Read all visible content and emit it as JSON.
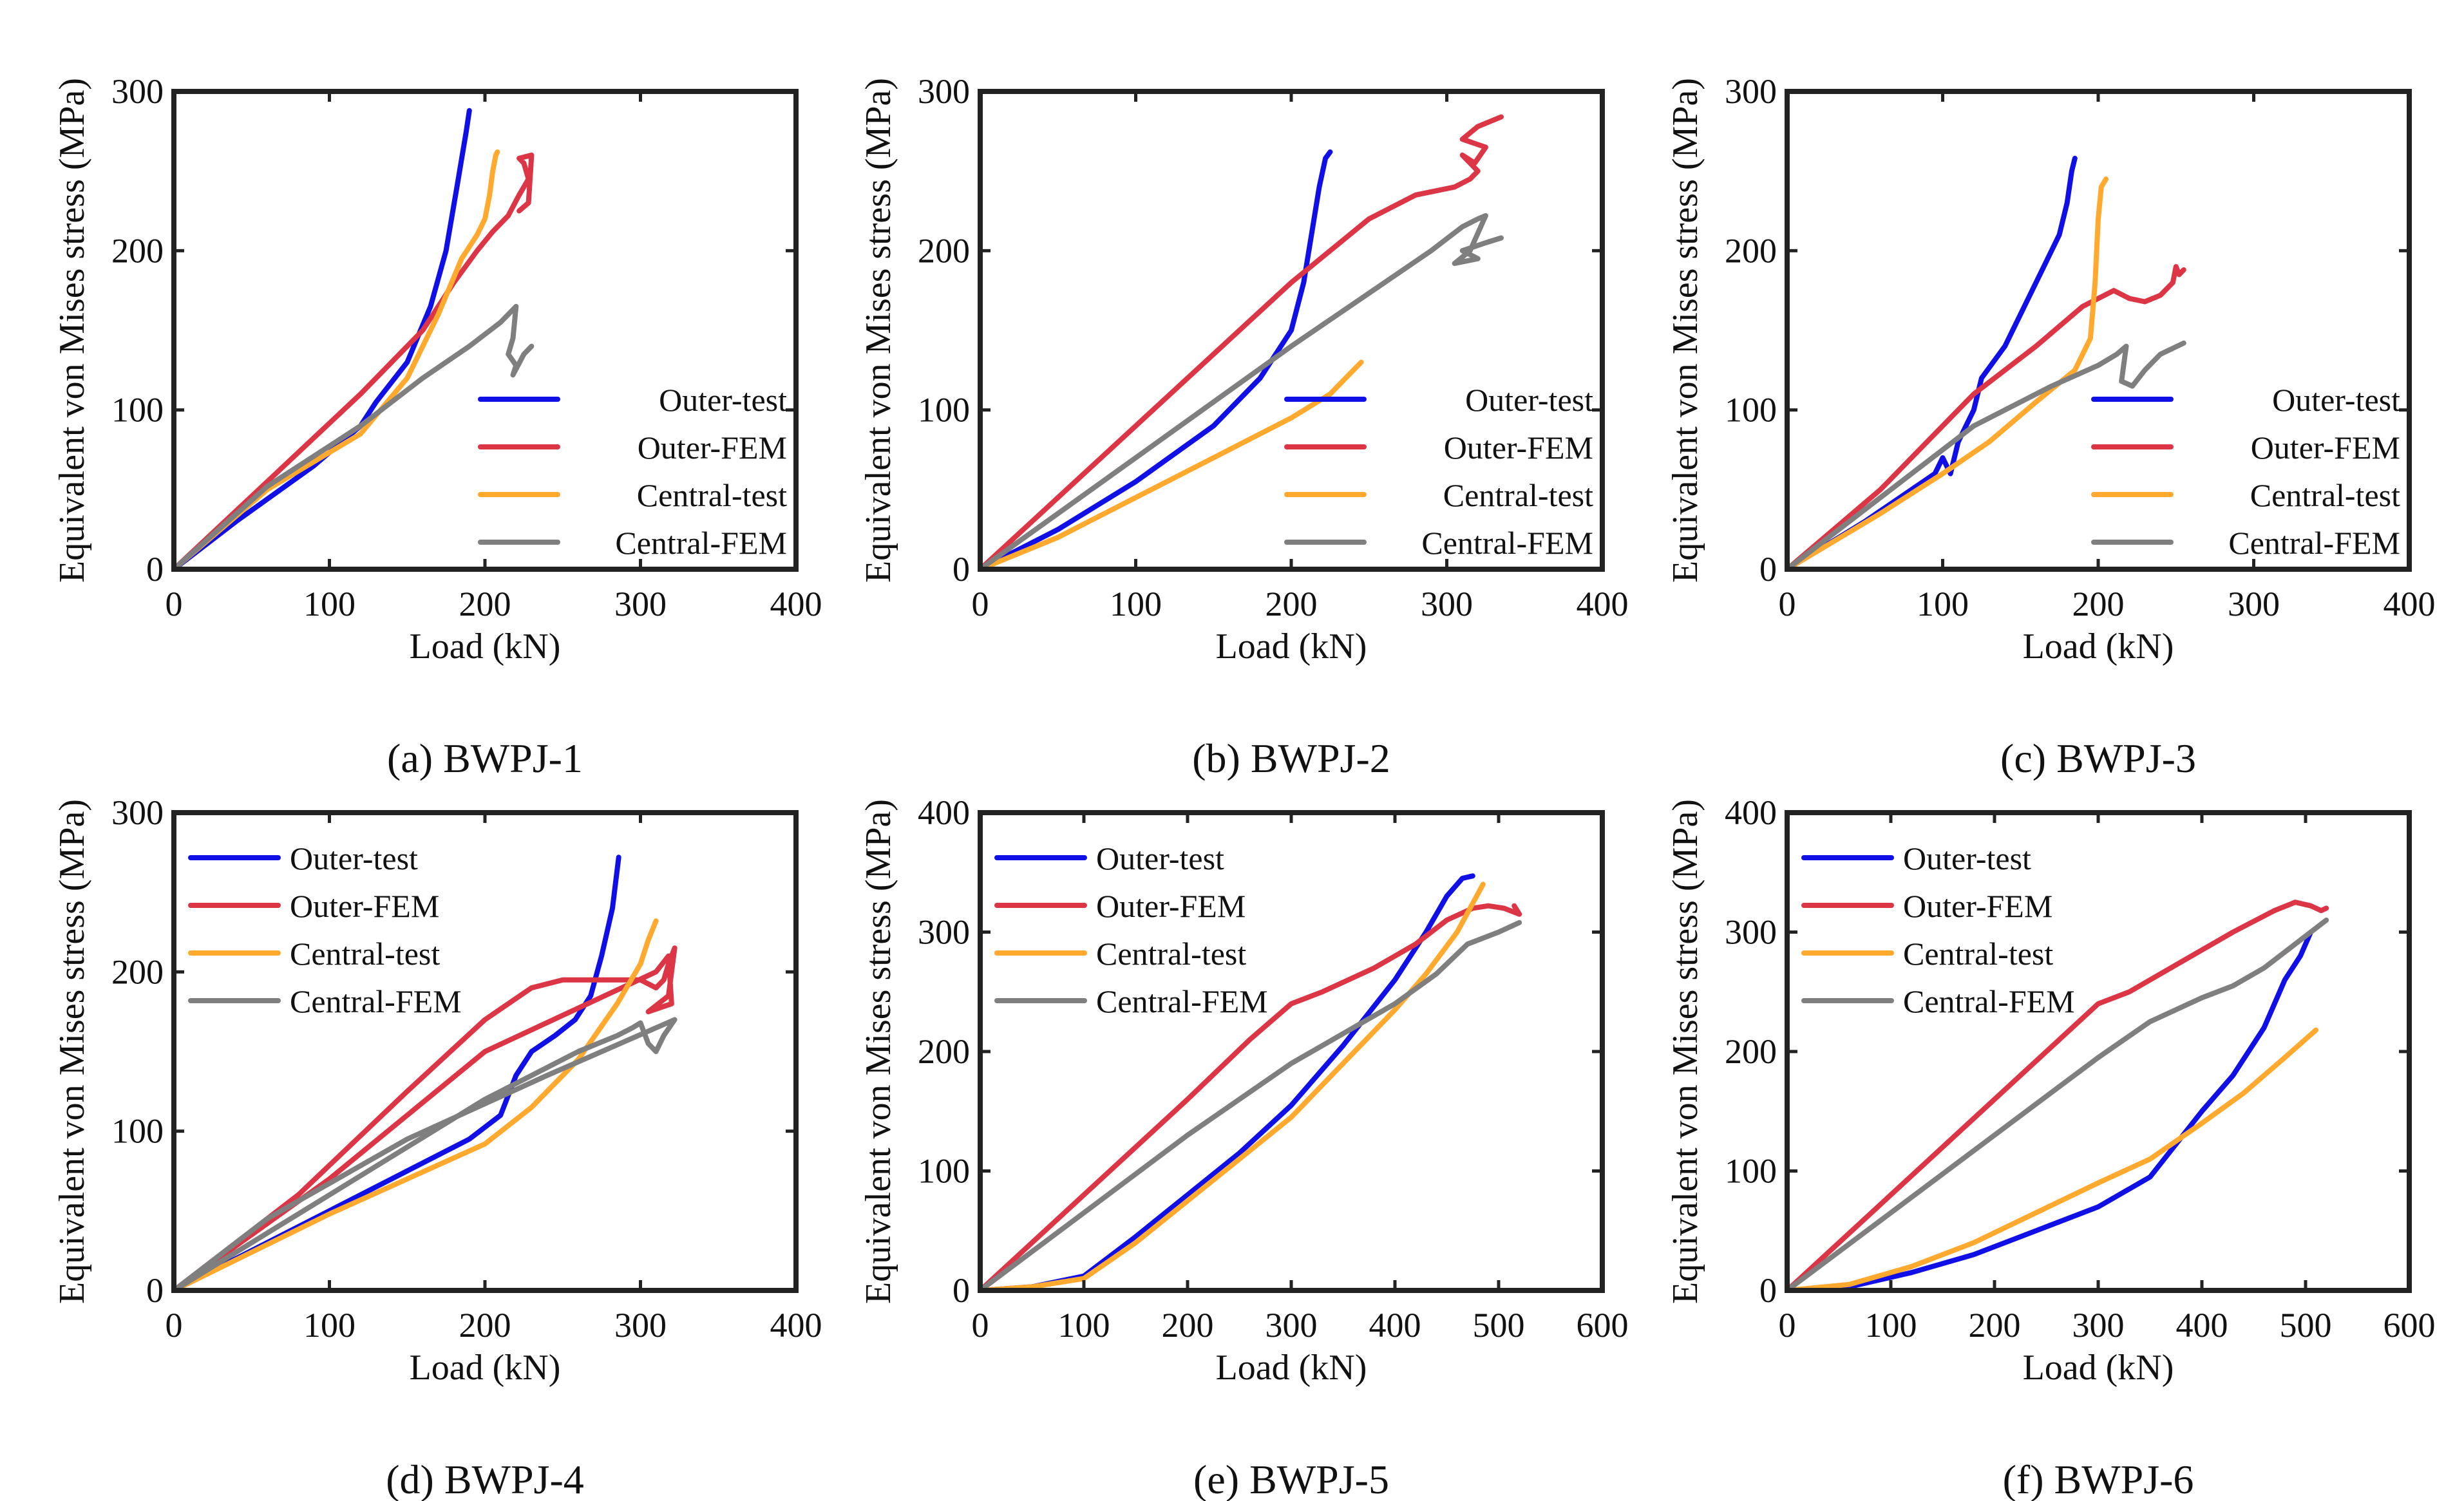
{
  "colors": {
    "outer_test": "#1010E6",
    "outer_fem": "#DC3545",
    "central_test": "#FFA92E",
    "central_fem": "#7F7F7F",
    "axis": "#222222"
  },
  "legend_labels": [
    "Outer-test",
    "Outer-FEM",
    "Central-test",
    "Central-FEM"
  ],
  "chart_data": [
    {
      "type": "line",
      "caption": "(a) BWPJ-1",
      "xlabel": "Load (kN)",
      "ylabel": "Equivalent von Mises stress (MPa)",
      "xlim": [
        0,
        400
      ],
      "ylim": [
        0,
        300
      ],
      "xticks": [
        0,
        100,
        200,
        300,
        400
      ],
      "yticks": [
        0,
        100,
        200,
        300
      ],
      "legend": "bottom-right",
      "series": [
        {
          "name": "Outer-test",
          "x": [
            0,
            40,
            90,
            120,
            130,
            150,
            165,
            175,
            182,
            188,
            190
          ],
          "y": [
            0,
            30,
            65,
            90,
            105,
            130,
            165,
            200,
            240,
            275,
            288
          ]
        },
        {
          "name": "Outer-FEM",
          "x": [
            0,
            60,
            120,
            160,
            180,
            195,
            205,
            215,
            222,
            228,
            225,
            222,
            230,
            228,
            222
          ],
          "y": [
            0,
            55,
            110,
            150,
            180,
            200,
            212,
            222,
            235,
            245,
            255,
            258,
            260,
            230,
            225
          ]
        },
        {
          "name": "Central-test",
          "x": [
            0,
            60,
            120,
            150,
            170,
            185,
            195,
            200,
            203,
            205,
            207,
            208
          ],
          "y": [
            0,
            50,
            85,
            120,
            160,
            195,
            210,
            220,
            235,
            250,
            260,
            262
          ]
        },
        {
          "name": "Central-FEM",
          "x": [
            0,
            60,
            120,
            160,
            190,
            210,
            220,
            218,
            215,
            220,
            218,
            225,
            230
          ],
          "y": [
            0,
            52,
            90,
            120,
            140,
            155,
            165,
            145,
            135,
            128,
            122,
            135,
            140
          ]
        }
      ]
    },
    {
      "type": "line",
      "caption": "(b) BWPJ-2",
      "xlabel": "Load (kN)",
      "ylabel": "Equivalent von Mises stress (MPa)",
      "xlim": [
        0,
        400
      ],
      "ylim": [
        0,
        300
      ],
      "xticks": [
        0,
        100,
        200,
        300,
        400
      ],
      "yticks": [
        0,
        100,
        200,
        300
      ],
      "legend": "bottom-right",
      "series": [
        {
          "name": "Outer-test",
          "x": [
            0,
            50,
            100,
            150,
            180,
            200,
            208,
            213,
            218,
            222,
            225
          ],
          "y": [
            0,
            25,
            55,
            90,
            120,
            150,
            180,
            210,
            240,
            258,
            262
          ]
        },
        {
          "name": "Outer-FEM",
          "x": [
            0,
            100,
            200,
            250,
            280,
            305,
            315,
            320,
            310,
            318,
            325,
            310,
            320,
            335
          ],
          "y": [
            0,
            90,
            180,
            220,
            235,
            240,
            245,
            250,
            260,
            255,
            265,
            270,
            278,
            284
          ]
        },
        {
          "name": "Central-test",
          "x": [
            0,
            50,
            100,
            150,
            200,
            225,
            230,
            235,
            240,
            245
          ],
          "y": [
            0,
            20,
            45,
            70,
            95,
            110,
            115,
            120,
            125,
            130
          ]
        },
        {
          "name": "Central-FEM",
          "x": [
            0,
            100,
            200,
            260,
            290,
            310,
            320,
            325,
            315,
            305,
            320,
            310,
            325,
            335
          ],
          "y": [
            0,
            70,
            140,
            180,
            200,
            215,
            220,
            222,
            200,
            192,
            195,
            200,
            205,
            208
          ]
        }
      ]
    },
    {
      "type": "line",
      "caption": "(c) BWPJ-3",
      "xlabel": "Load (kN)",
      "ylabel": "Equivalent von Mises stress (MPa)",
      "xlim": [
        0,
        400
      ],
      "ylim": [
        0,
        300
      ],
      "xticks": [
        0,
        100,
        200,
        300,
        400
      ],
      "yticks": [
        0,
        100,
        200,
        300
      ],
      "legend": "bottom-right",
      "series": [
        {
          "name": "Outer-test",
          "x": [
            0,
            50,
            95,
            100,
            105,
            110,
            115,
            120,
            125,
            140,
            150,
            165,
            175,
            180,
            183,
            185
          ],
          "y": [
            0,
            30,
            60,
            70,
            60,
            80,
            90,
            100,
            120,
            140,
            160,
            190,
            210,
            230,
            250,
            258
          ]
        },
        {
          "name": "Outer-FEM",
          "x": [
            0,
            60,
            120,
            160,
            190,
            210,
            220,
            230,
            240,
            248,
            250,
            252,
            255
          ],
          "y": [
            0,
            50,
            110,
            140,
            165,
            175,
            170,
            168,
            172,
            180,
            190,
            185,
            188
          ]
        },
        {
          "name": "Central-test",
          "x": [
            0,
            60,
            100,
            130,
            160,
            185,
            195,
            198,
            200,
            202,
            205
          ],
          "y": [
            0,
            35,
            60,
            80,
            105,
            125,
            145,
            180,
            220,
            240,
            245
          ]
        },
        {
          "name": "Central-FEM",
          "x": [
            0,
            60,
            120,
            170,
            200,
            212,
            218,
            215,
            222,
            230,
            240,
            255
          ],
          "y": [
            0,
            45,
            90,
            115,
            128,
            135,
            140,
            118,
            115,
            125,
            135,
            142
          ]
        }
      ]
    },
    {
      "type": "line",
      "caption": "(d) BWPJ-4",
      "xlabel": "Load (kN)",
      "ylabel": "Equivalent von Mises stress (MPa)",
      "xlim": [
        0,
        400
      ],
      "ylim": [
        0,
        300
      ],
      "xticks": [
        0,
        100,
        200,
        300,
        400
      ],
      "yticks": [
        0,
        100,
        200,
        300
      ],
      "legend": "top-left",
      "series": [
        {
          "name": "Outer-test",
          "x": [
            0,
            100,
            190,
            210,
            220,
            230,
            245,
            258,
            268,
            275,
            282,
            286
          ],
          "y": [
            0,
            50,
            95,
            110,
            135,
            150,
            160,
            170,
            185,
            210,
            240,
            272
          ]
        },
        {
          "name": "Outer-FEM",
          "x": [
            0,
            80,
            150,
            200,
            230,
            250,
            270,
            290,
            300,
            310,
            315,
            318,
            322,
            318,
            305,
            320,
            318,
            310,
            200,
            100,
            0
          ],
          "y": [
            0,
            60,
            125,
            170,
            190,
            195,
            195,
            195,
            195,
            190,
            195,
            205,
            215,
            185,
            175,
            180,
            210,
            200,
            150,
            70,
            0
          ]
        },
        {
          "name": "Central-test",
          "x": [
            0,
            100,
            200,
            230,
            260,
            285,
            300,
            305,
            310
          ],
          "y": [
            0,
            48,
            92,
            115,
            145,
            180,
            205,
            220,
            232
          ]
        },
        {
          "name": "Central-FEM",
          "x": [
            0,
            100,
            200,
            260,
            285,
            295,
            300,
            305,
            310,
            315,
            322,
            240,
            150,
            60,
            0
          ],
          "y": [
            0,
            60,
            120,
            150,
            160,
            165,
            168,
            155,
            150,
            160,
            170,
            135,
            95,
            45,
            0
          ]
        }
      ]
    },
    {
      "type": "line",
      "caption": "(e) BWPJ-5",
      "xlabel": "Load (kN)",
      "ylabel": "Equivalent von Mises stress (MPa)",
      "xlim": [
        0,
        600
      ],
      "ylim": [
        0,
        400
      ],
      "xticks": [
        0,
        100,
        200,
        300,
        400,
        500,
        600
      ],
      "yticks": [
        0,
        100,
        200,
        300,
        400
      ],
      "legend": "top-left",
      "series": [
        {
          "name": "Outer-test",
          "x": [
            0,
            50,
            100,
            150,
            200,
            250,
            300,
            350,
            400,
            430,
            450,
            465,
            475
          ],
          "y": [
            0,
            3,
            12,
            45,
            80,
            115,
            155,
            205,
            260,
            300,
            330,
            345,
            347
          ]
        },
        {
          "name": "Outer-FEM",
          "x": [
            0,
            100,
            200,
            260,
            300,
            330,
            380,
            420,
            450,
            475,
            490,
            505,
            520,
            515
          ],
          "y": [
            0,
            80,
            160,
            210,
            240,
            250,
            270,
            290,
            310,
            320,
            322,
            320,
            315,
            322
          ]
        },
        {
          "name": "Central-test",
          "x": [
            0,
            50,
            100,
            150,
            200,
            250,
            300,
            350,
            400,
            430,
            460,
            485
          ],
          "y": [
            0,
            3,
            10,
            40,
            75,
            110,
            145,
            190,
            235,
            265,
            300,
            340
          ]
        },
        {
          "name": "Central-FEM",
          "x": [
            0,
            100,
            200,
            300,
            400,
            440,
            470,
            500,
            520
          ],
          "y": [
            0,
            65,
            130,
            190,
            240,
            265,
            290,
            300,
            308
          ]
        }
      ]
    },
    {
      "type": "line",
      "caption": "(f) BWPJ-6",
      "xlabel": "Load (kN)",
      "ylabel": "Equivalent von Mises stress (MPa)",
      "xlim": [
        0,
        600
      ],
      "ylim": [
        0,
        400
      ],
      "xticks": [
        0,
        100,
        200,
        300,
        400,
        500,
        600
      ],
      "yticks": [
        0,
        100,
        200,
        300,
        400
      ],
      "legend": "top-left",
      "series": [
        {
          "name": "Outer-test",
          "x": [
            0,
            60,
            120,
            180,
            240,
            300,
            350,
            400,
            430,
            460,
            480,
            495,
            505
          ],
          "y": [
            0,
            3,
            15,
            30,
            50,
            70,
            95,
            150,
            180,
            220,
            260,
            280,
            300
          ]
        },
        {
          "name": "Outer-FEM",
          "x": [
            0,
            100,
            200,
            300,
            330,
            380,
            430,
            470,
            490,
            505,
            515,
            520
          ],
          "y": [
            0,
            80,
            160,
            240,
            250,
            275,
            300,
            318,
            325,
            322,
            318,
            320
          ]
        },
        {
          "name": "Central-test",
          "x": [
            0,
            60,
            120,
            180,
            240,
            300,
            350,
            400,
            440,
            480,
            510
          ],
          "y": [
            0,
            5,
            20,
            40,
            65,
            90,
            110,
            140,
            165,
            195,
            218
          ]
        },
        {
          "name": "Central-FEM",
          "x": [
            0,
            100,
            200,
            300,
            350,
            400,
            430,
            460,
            490,
            520
          ],
          "y": [
            0,
            65,
            130,
            195,
            225,
            245,
            255,
            270,
            290,
            310
          ]
        }
      ]
    }
  ]
}
